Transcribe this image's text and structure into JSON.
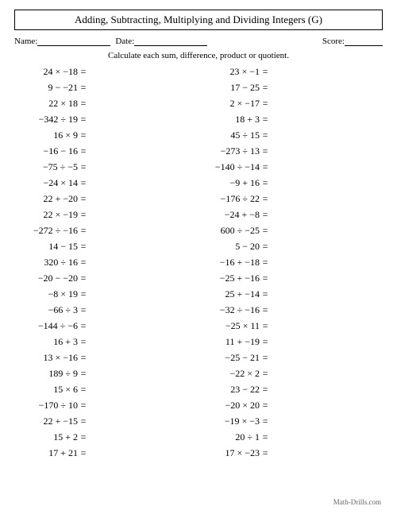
{
  "title": "Adding, Subtracting, Multiplying and Dividing Integers (G)",
  "meta": {
    "name_label": "Name:",
    "date_label": "Date:",
    "score_label": "Score:"
  },
  "instruction": "Calculate each sum, difference, product or quotient.",
  "columns": {
    "left": [
      "24 × −18",
      "9 − −21",
      "22 × 18",
      "−342 ÷ 19",
      "16 × 9",
      "−16 − 16",
      "−75 ÷ −5",
      "−24 × 14",
      "22 + −20",
      "22 × −19",
      "−272 ÷ −16",
      "14 − 15",
      "320 ÷ 16",
      "−20 − −20",
      "−8 × 19",
      "−66 ÷ 3",
      "−144 ÷ −6",
      "16 + 3",
      "13 × −16",
      "189 ÷ 9",
      "15 × 6",
      "−170 ÷ 10",
      "22 + −15",
      "15 + 2",
      "17 + 21"
    ],
    "right": [
      "23 × −1",
      "17 − 25",
      "2 × −17",
      "18 + 3",
      "45 ÷ 15",
      "−273 ÷ 13",
      "−140 ÷ −14",
      "−9 + 16",
      "−176 ÷ 22",
      "−24 + −8",
      "600 ÷ −25",
      "5 − 20",
      "−16 + −18",
      "−25 + −16",
      "25 + −14",
      "−32 ÷ −16",
      "−25 × 11",
      "11 + −19",
      "−25 − 21",
      "−22 × 2",
      "23 − 22",
      "−20 × 20",
      "−19 × −3",
      "20 ÷ 1",
      "17 × −23"
    ]
  },
  "equals": "=",
  "footer": "Math-Drills.com",
  "style": {
    "page_bg": "#ffffff",
    "text_color": "#000000",
    "footer_color": "#666666",
    "border_color": "#000000",
    "title_fontsize": 13,
    "body_fontsize": 12,
    "meta_fontsize": 11,
    "instruction_fontsize": 11,
    "footer_fontsize": 9,
    "font_family": "Times New Roman"
  }
}
